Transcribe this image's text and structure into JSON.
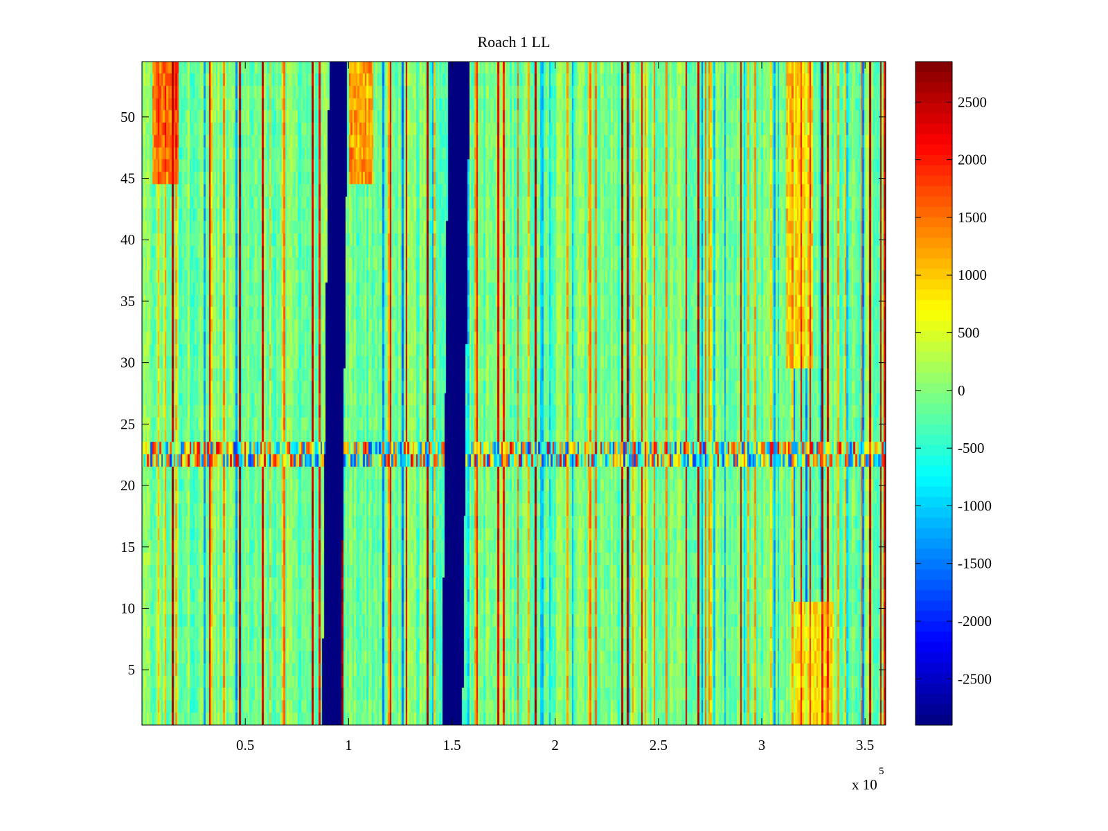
{
  "chart_data": {
    "type": "heatmap",
    "title": "Roach 1 LL",
    "xlabel": "",
    "ylabel": "",
    "x_multiplier": {
      "base": "x 10",
      "exponent": "5"
    },
    "xlim": [
      0,
      3.6
    ],
    "ylim": [
      0.5,
      54.5
    ],
    "x_ticks": [
      0.5,
      1,
      1.5,
      2,
      2.5,
      3,
      3.5
    ],
    "x_tick_labels": [
      "0.5",
      "1",
      "1.5",
      "2",
      "2.5",
      "3",
      "3.5"
    ],
    "y_ticks": [
      5,
      10,
      15,
      20,
      25,
      30,
      35,
      40,
      45,
      50
    ],
    "y_tick_labels": [
      "5",
      "10",
      "15",
      "20",
      "25",
      "30",
      "35",
      "40",
      "45",
      "50"
    ],
    "colorbar": {
      "colormap": "jet",
      "clim": [
        -2900,
        2850
      ],
      "ticks": [
        2500,
        2000,
        1500,
        1000,
        500,
        0,
        -500,
        -1000,
        -1500,
        -2000,
        -2500
      ],
      "tick_labels": [
        "2500",
        "2000",
        "1500",
        "1000",
        "500",
        "0",
        "-500",
        "-1000",
        "-1500",
        "-2000",
        "-2500"
      ]
    },
    "rows": 54,
    "features": {
      "saturated_low_bands": [
        {
          "x_range": [
            0.89,
            0.98
          ],
          "value": -2900
        },
        {
          "x_range": [
            1.47,
            1.57
          ],
          "value": -2900
        }
      ],
      "high_regions": [
        {
          "x_range": [
            0.05,
            0.18
          ],
          "y_range": [
            45,
            54
          ],
          "value": 1500
        },
        {
          "x_range": [
            1.0,
            1.12
          ],
          "y_range": [
            45,
            54
          ],
          "value": 1300
        },
        {
          "x_range": [
            3.12,
            3.25
          ],
          "y_range": [
            30,
            54
          ],
          "value": 1000
        },
        {
          "x_range": [
            3.15,
            3.35
          ],
          "y_range": [
            1,
            10
          ],
          "value": 900
        }
      ],
      "noisy_row_band": {
        "y_range": [
          21.5,
          23.5
        ]
      },
      "background_mean": -100
    }
  }
}
